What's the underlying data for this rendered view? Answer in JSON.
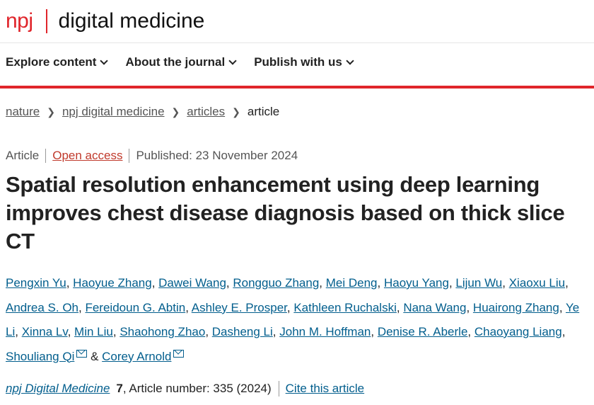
{
  "header": {
    "logo_brand": "npj",
    "logo_name": "digital medicine"
  },
  "nav": [
    {
      "label": "Explore content"
    },
    {
      "label": "About the journal"
    },
    {
      "label": "Publish with us"
    }
  ],
  "breadcrumb": [
    {
      "label": "nature"
    },
    {
      "label": "npj digital medicine"
    },
    {
      "label": "articles"
    },
    {
      "label": "article"
    }
  ],
  "meta": {
    "type": "Article",
    "access": "Open access",
    "published": "Published: 23 November 2024"
  },
  "title": "Spatial resolution enhancement using deep learning improves chest disease diagnosis based on thick slice CT",
  "authors": [
    "Pengxin Yu",
    "Haoyue Zhang",
    "Dawei Wang",
    "Rongguo Zhang",
    "Mei Deng",
    "Haoyu Yang",
    "Lijun Wu",
    "Xiaoxu Liu",
    "Andrea S. Oh",
    "Fereidoun G. Abtin",
    "Ashley E. Prosper",
    "Kathleen Ruchalski",
    "Nana Wang",
    "Huairong Zhang",
    "Ye Li",
    "Xinna Lv",
    "Min Liu",
    "Shaohong Zhao",
    "Dasheng Li",
    "John M. Hoffman",
    "Denise R. Aberle",
    "Chaoyang Liang",
    "Shouliang Qi",
    "Corey Arnold"
  ],
  "authors_conjunction": "&",
  "citation": {
    "journal": "npj Digital Medicine",
    "volume": "7",
    "rest": ", Article number: 335 (2024)",
    "cite_label": "Cite this article"
  },
  "colors": {
    "brand_red": "#e0252b",
    "link": "#025e8d",
    "open_access": "#c0392b"
  }
}
